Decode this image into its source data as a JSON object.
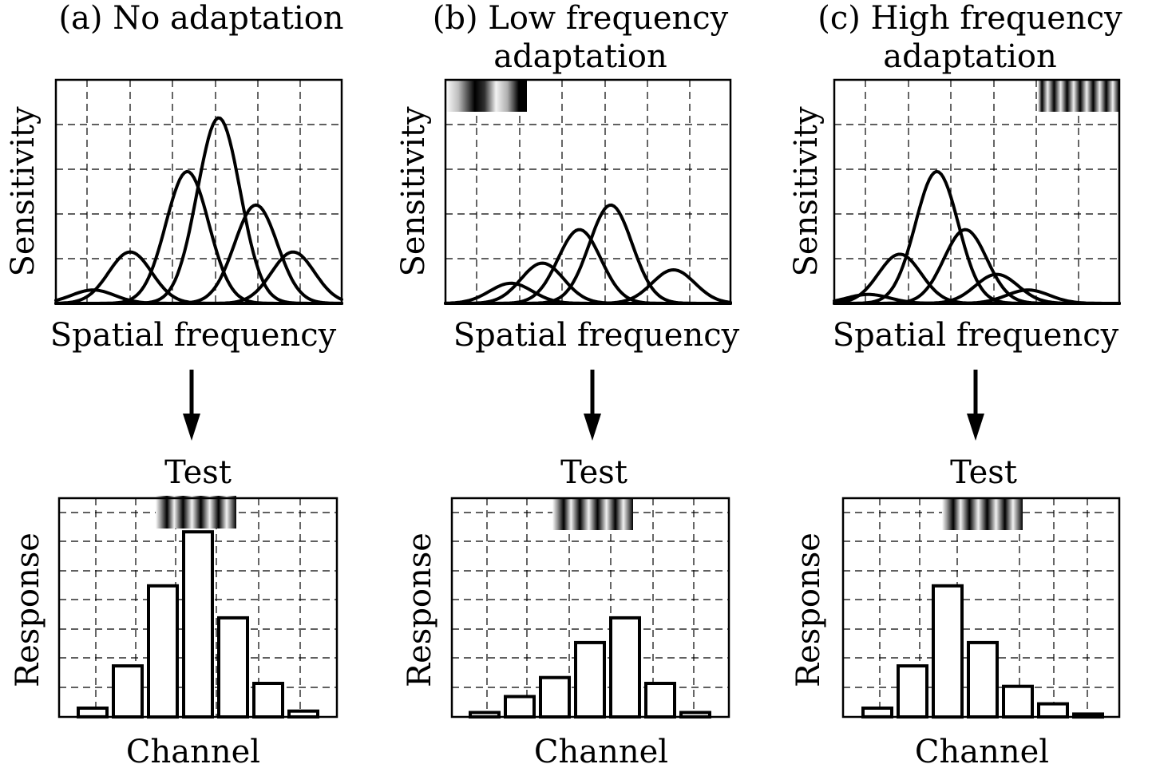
{
  "panels": [
    {
      "title_lines": [
        "(a) No adaptation"
      ],
      "sensitivity_label": "Sensitivity",
      "frequency_label": "Spatial frequency",
      "adaptor_grating": "none",
      "channel_peaks": [
        0.3,
        1.15,
        2.95,
        4.15,
        2.2,
        1.15
      ],
      "test_label": "Test",
      "response_label": "Response",
      "channel_label": "Channel",
      "responses": [
        0.3,
        1.75,
        4.5,
        6.35,
        3.4,
        1.15,
        0.2
      ]
    },
    {
      "title_lines": [
        "(b) Low frequency",
        "adaptation"
      ],
      "sensitivity_label": "Sensitivity",
      "frequency_label": "Spatial frequency",
      "adaptor_grating": "low-frequency grating",
      "channel_peaks": [
        0.45,
        0.9,
        1.65,
        2.2,
        0.75
      ],
      "test_label": "Test",
      "response_label": "Response",
      "channel_label": "Channel",
      "responses": [
        0.15,
        0.7,
        1.35,
        2.55,
        3.4,
        1.15,
        0.15
      ]
    },
    {
      "title_lines": [
        "(c) High frequency",
        "adaptation"
      ],
      "sensitivity_label": "Sensitivity",
      "frequency_label": "Spatial frequency",
      "adaptor_grating": "high-frequency grating",
      "channel_peaks": [
        0.2,
        1.1,
        2.95,
        1.65,
        0.65,
        0.3
      ],
      "test_label": "Test",
      "response_label": "Response",
      "channel_label": "Channel",
      "responses": [
        0.3,
        1.75,
        4.5,
        2.55,
        1.05,
        0.45,
        0.1
      ]
    }
  ]
}
